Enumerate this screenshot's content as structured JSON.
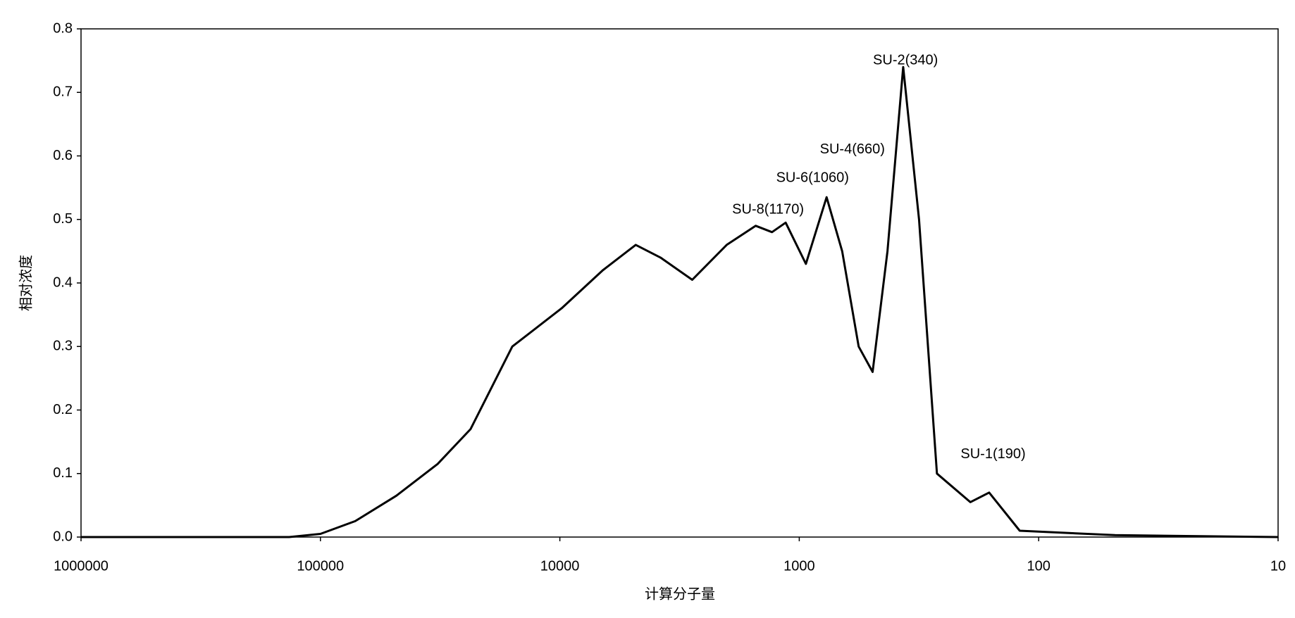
{
  "chart_data": {
    "type": "line",
    "x_label": "计算分子量",
    "y_label": "相对浓度",
    "x": [
      1000000,
      135000,
      100000,
      71600,
      48200,
      32400,
      23600,
      15800,
      9840,
      6620,
      4820,
      3800,
      2800,
      2010,
      1520,
      1300,
      1140,
      938,
      769,
      662,
      565,
      494,
      428,
      368,
      316,
      266,
      193,
      161,
      120,
      48,
      10
    ],
    "series": [
      {
        "color": "#000000",
        "values": [
          0,
          0,
          0.005,
          0.025,
          0.065,
          0.115,
          0.17,
          0.3,
          0.36,
          0.42,
          0.46,
          0.44,
          0.405,
          0.46,
          0.49,
          0.48,
          0.495,
          0.43,
          0.535,
          0.45,
          0.3,
          0.26,
          0.45,
          0.74,
          0.5,
          0.1,
          0.055,
          0.07,
          0.01,
          0.003,
          0
        ]
      }
    ],
    "xlim": [
      1000000,
      10
    ],
    "xlog": true,
    "xticks": [
      1000000,
      100000,
      10000,
      1000,
      100,
      10
    ],
    "ylim": [
      0,
      0.8
    ],
    "yticks": [
      {
        "value": 0,
        "label": "0.0"
      },
      0.1,
      0.2,
      0.3,
      0.4,
      0.5,
      0.6,
      0.7,
      0.8
    ],
    "annotations": [
      {
        "text": "SU-8(1170)",
        "x": 1350,
        "y": 0.515
      },
      {
        "text": "SU-6(1060)",
        "x": 880,
        "y": 0.565
      },
      {
        "text": "SU-4(660)",
        "x": 600,
        "y": 0.61
      },
      {
        "text": "SU-2(340)",
        "x": 360,
        "y": 0.75
      },
      {
        "text": "SU-1(190)",
        "x": 155,
        "y": 0.13
      }
    ]
  }
}
